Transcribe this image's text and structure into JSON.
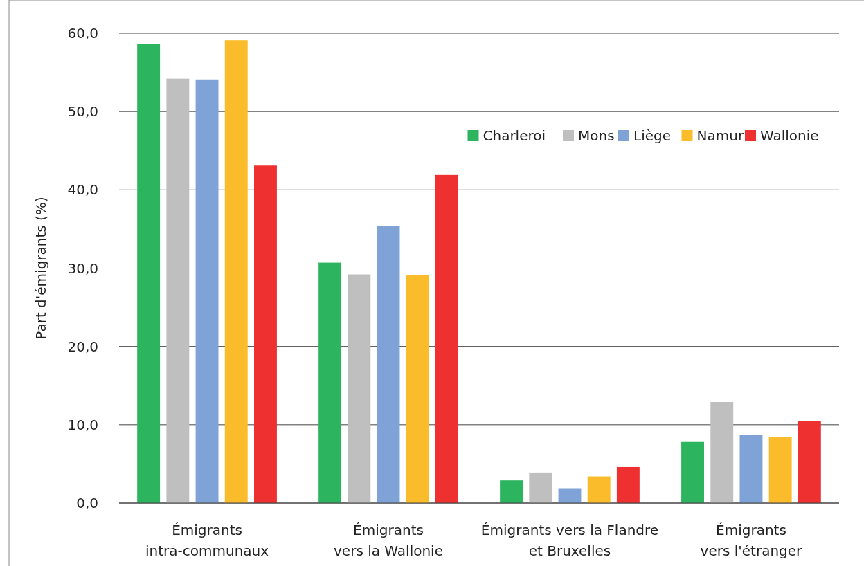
{
  "chart_data": {
    "type": "bar",
    "ylabel": "Part d'émigrants (%)",
    "categories": [
      "Émigrants\nintra-communaux",
      "Émigrants\nvers la Wallonie",
      "Émigrants vers la Flandre\net Bruxelles",
      "Émigrants\nvers l'étranger"
    ],
    "series": [
      {
        "name": "Charleroi",
        "color": "#2db45e",
        "values": [
          58.6,
          30.7,
          2.9,
          7.8
        ]
      },
      {
        "name": "Mons",
        "color": "#bfbfbf",
        "values": [
          54.2,
          29.2,
          3.9,
          12.9
        ]
      },
      {
        "name": "Liège",
        "color": "#7fa3d6",
        "values": [
          54.1,
          35.4,
          1.9,
          8.7
        ]
      },
      {
        "name": "Namur",
        "color": "#fbbc2c",
        "values": [
          59.1,
          29.1,
          3.4,
          8.4
        ]
      },
      {
        "name": "Wallonie",
        "color": "#ee3030",
        "values": [
          43.1,
          41.9,
          4.6,
          10.5
        ]
      }
    ],
    "ylim": [
      0,
      60
    ],
    "yticks": [
      {
        "value": 0,
        "label": "0,0"
      },
      {
        "value": 10,
        "label": "10,0"
      },
      {
        "value": 20,
        "label": "20,0"
      },
      {
        "value": 30,
        "label": "30,0"
      },
      {
        "value": 40,
        "label": "40,0"
      },
      {
        "value": 50,
        "label": "50,0"
      },
      {
        "value": 60,
        "label": "60,0"
      }
    ],
    "grid": "y",
    "legend": "top right"
  }
}
